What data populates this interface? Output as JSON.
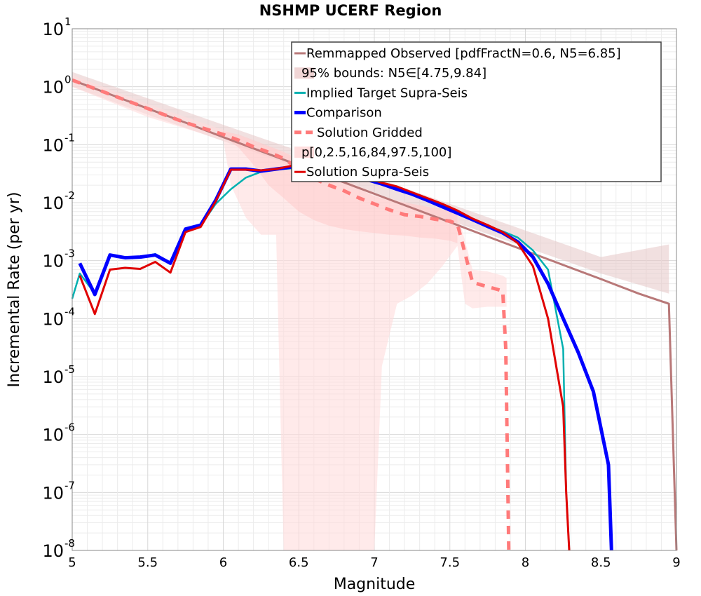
{
  "chart_data": {
    "type": "line",
    "title": "NSHMP UCERF Region",
    "xlabel": "Magnitude",
    "ylabel": "Incremental Rate (per yr)",
    "xlim": [
      5,
      9
    ],
    "ylim": [
      1e-08,
      10
    ],
    "yscale": "log",
    "grid": true,
    "legend_position": "top-right",
    "x_ticks": [
      "5",
      "5.5",
      "6",
      "6.5",
      "7",
      "7.5",
      "8",
      "8.5",
      "9"
    ],
    "y_ticks": [
      {
        "base": "10",
        "exp": "1"
      },
      {
        "base": "10",
        "exp": "0"
      },
      {
        "base": "10",
        "exp": "-1"
      },
      {
        "base": "10",
        "exp": "-2"
      },
      {
        "base": "10",
        "exp": "-3"
      },
      {
        "base": "10",
        "exp": "-4"
      },
      {
        "base": "10",
        "exp": "-5"
      },
      {
        "base": "10",
        "exp": "-6"
      },
      {
        "base": "10",
        "exp": "-7"
      },
      {
        "base": "10",
        "exp": "-8"
      }
    ],
    "legend": [
      {
        "label": "Remmapped Observed [pdfFractN=0.6, N5=6.85]",
        "color": "#B87878",
        "style": "solid"
      },
      {
        "label": "95% bounds: N5∈[4.75,9.84]",
        "color": "#F0D5D5",
        "style": "band"
      },
      {
        "label": "Implied Target Supra-Seis",
        "color": "#00B0B0",
        "style": "solid"
      },
      {
        "label": "Comparison",
        "color": "#0000FF",
        "style": "thick"
      },
      {
        "label": "Solution Gridded",
        "color": "#FF7A7A",
        "style": "dashed"
      },
      {
        "label": "p[0,2.5,16,84,97.5,100]",
        "color": "#FFDDDD",
        "style": "band"
      },
      {
        "label": "Solution Supra-Seis",
        "color": "#E00000",
        "style": "solid"
      }
    ],
    "bands": [
      {
        "name": "95% bounds: N5∈[4.75,9.84]",
        "color": "#E6C6C6",
        "opacity": 0.55,
        "x": [
          5.0,
          5.5,
          6.0,
          6.5,
          7.0,
          7.5,
          8.0,
          8.5,
          8.95
        ],
        "upper": [
          1.8,
          0.63,
          0.22,
          0.078,
          0.027,
          0.0095,
          0.0033,
          0.00115,
          0.0019
        ],
        "lower": [
          1.0,
          0.33,
          0.115,
          0.04,
          0.014,
          0.0049,
          0.0017,
          0.0006,
          0.00027
        ]
      },
      {
        "name": "p[0,2.5,16,84,97.5,100] outer",
        "color": "#FFDCDC",
        "opacity": 0.6,
        "x": [
          5.0,
          5.5,
          6.0,
          6.05,
          6.15,
          6.25,
          6.35,
          6.4,
          6.45,
          6.55,
          6.65,
          6.75,
          6.85,
          6.95,
          7.0,
          7.05,
          7.15,
          7.25,
          7.35,
          7.45,
          7.55,
          7.6,
          7.65,
          7.75,
          7.85,
          7.875
        ],
        "upper": [
          1.6,
          0.5,
          0.18,
          0.16,
          0.13,
          0.1,
          0.085,
          0.075,
          0.066,
          0.05,
          0.038,
          0.03,
          0.022,
          0.017,
          0.015,
          0.013,
          0.011,
          0.0095,
          0.0085,
          0.0075,
          0.0068,
          0.0022,
          0.0007,
          0.00065,
          0.00055,
          0.0005
        ],
        "lower": [
          1.0,
          0.3,
          0.12,
          0.02,
          0.0055,
          0.0028,
          0.0028,
          1e-08,
          1e-08,
          1e-08,
          1e-08,
          1e-08,
          1e-08,
          1e-08,
          1e-08,
          1.5e-05,
          0.00018,
          0.00025,
          0.0004,
          0.0008,
          0.0018,
          0.00018,
          0.00015,
          0.00016,
          0.00016,
          0.00016
        ]
      },
      {
        "name": "p[0,2.5,16,84,97.5,100] inner",
        "color": "#FFC8C8",
        "opacity": 0.5,
        "x": [
          6.0,
          6.1,
          6.2,
          6.3,
          6.4,
          6.5,
          6.6,
          6.7,
          6.8,
          6.9,
          7.0,
          7.1,
          7.2,
          7.3,
          7.4,
          7.5,
          7.55
        ],
        "upper": [
          0.17,
          0.15,
          0.12,
          0.095,
          0.075,
          0.055,
          0.04,
          0.03,
          0.022,
          0.017,
          0.013,
          0.011,
          0.01,
          0.009,
          0.008,
          0.0072,
          0.0068
        ],
        "lower": [
          0.14,
          0.09,
          0.045,
          0.02,
          0.012,
          0.007,
          0.005,
          0.004,
          0.0035,
          0.0032,
          0.003,
          0.0028,
          0.0027,
          0.0025,
          0.0024,
          0.0022,
          0.002
        ]
      }
    ],
    "series": [
      {
        "name": "Remmapped Observed [pdfFractN=0.6, N5=6.85]",
        "color": "#B87878",
        "width": 3,
        "dash": "",
        "x": [
          5.0,
          5.25,
          5.5,
          5.75,
          6.0,
          6.25,
          6.5,
          6.75,
          7.0,
          7.25,
          7.5,
          7.75,
          8.0,
          8.25,
          8.5,
          8.75,
          8.95,
          9.0
        ],
        "y": [
          1.3,
          0.74,
          0.42,
          0.24,
          0.135,
          0.077,
          0.044,
          0.025,
          0.0142,
          0.0081,
          0.0046,
          0.0026,
          0.00148,
          0.00084,
          0.00048,
          0.00027,
          0.00018,
          1e-08
        ]
      },
      {
        "name": "Implied Target Supra-Seis",
        "color": "#00B0B0",
        "width": 2.5,
        "dash": "",
        "x": [
          5.0,
          5.05,
          5.15,
          5.25,
          5.35,
          5.45,
          5.55,
          5.65,
          5.75,
          5.85,
          5.95,
          6.05,
          6.15,
          6.25,
          6.35,
          6.45,
          6.55,
          6.65,
          6.75,
          6.85,
          6.95,
          7.05,
          7.15,
          7.25,
          7.35,
          7.45,
          7.55,
          7.65,
          7.75,
          7.85,
          7.95,
          8.05,
          8.15,
          8.25,
          8.27,
          8.29
        ],
        "y": [
          0.00022,
          0.0006,
          0.00027,
          0.00122,
          0.00112,
          0.00115,
          0.0013,
          0.0009,
          0.0032,
          0.004,
          0.0095,
          0.017,
          0.027,
          0.034,
          0.037,
          0.039,
          0.039,
          0.037,
          0.033,
          0.029,
          0.025,
          0.021,
          0.017,
          0.014,
          0.011,
          0.0085,
          0.0066,
          0.0052,
          0.004,
          0.0032,
          0.0025,
          0.0015,
          0.0007,
          3e-05,
          1e-07,
          1e-08
        ]
      },
      {
        "name": "Comparison",
        "color": "#0000FF",
        "width": 5,
        "dash": "",
        "x": [
          5.05,
          5.15,
          5.25,
          5.35,
          5.45,
          5.55,
          5.65,
          5.75,
          5.85,
          5.95,
          6.05,
          6.15,
          6.25,
          6.35,
          6.45,
          6.55,
          6.65,
          6.75,
          6.85,
          6.95,
          7.05,
          7.15,
          7.25,
          7.35,
          7.45,
          7.55,
          7.65,
          7.75,
          7.85,
          7.95,
          8.05,
          8.15,
          8.25,
          8.35,
          8.45,
          8.55,
          8.57
        ],
        "y": [
          0.0009,
          0.00026,
          0.00125,
          0.00112,
          0.00115,
          0.00125,
          0.0009,
          0.0035,
          0.0041,
          0.011,
          0.038,
          0.038,
          0.035,
          0.038,
          0.041,
          0.041,
          0.037,
          0.033,
          0.029,
          0.025,
          0.021,
          0.017,
          0.014,
          0.011,
          0.0085,
          0.0066,
          0.0051,
          0.0039,
          0.003,
          0.0021,
          0.00115,
          0.0004,
          0.0001,
          2.6e-05,
          5.5e-06,
          3e-07,
          1e-08
        ]
      },
      {
        "name": "Solution Gridded",
        "color": "#FF7A7A",
        "width": 5,
        "dash": "12,10",
        "x": [
          5.0,
          5.25,
          5.5,
          5.75,
          6.0,
          6.1,
          6.2,
          6.3,
          6.4,
          6.5,
          6.6,
          6.7,
          6.8,
          6.9,
          7.0,
          7.1,
          7.2,
          7.3,
          7.4,
          7.5,
          7.55,
          7.65,
          7.85,
          7.87,
          7.89
        ],
        "y": [
          1.3,
          0.74,
          0.42,
          0.24,
          0.15,
          0.12,
          0.092,
          0.074,
          0.058,
          0.038,
          0.026,
          0.02,
          0.016,
          0.012,
          0.0095,
          0.0075,
          0.0062,
          0.0058,
          0.0052,
          0.0048,
          0.0043,
          0.00042,
          0.0003,
          3e-05,
          1e-08
        ]
      },
      {
        "name": "Solution Supra-Seis",
        "color": "#E00000",
        "width": 3,
        "dash": "",
        "x": [
          5.05,
          5.15,
          5.25,
          5.35,
          5.45,
          5.55,
          5.65,
          5.75,
          5.85,
          5.95,
          6.05,
          6.15,
          6.25,
          6.35,
          6.45,
          6.55,
          6.65,
          6.75,
          6.85,
          6.95,
          7.05,
          7.15,
          7.25,
          7.35,
          7.45,
          7.55,
          7.65,
          7.75,
          7.85,
          7.95,
          8.05,
          8.15,
          8.25,
          8.27,
          8.29
        ],
        "y": [
          0.00055,
          0.00012,
          0.0007,
          0.00075,
          0.00072,
          0.00095,
          0.00062,
          0.0031,
          0.0038,
          0.0105,
          0.037,
          0.037,
          0.036,
          0.038,
          0.043,
          0.045,
          0.04,
          0.035,
          0.031,
          0.027,
          0.022,
          0.019,
          0.015,
          0.012,
          0.0095,
          0.0073,
          0.0053,
          0.0041,
          0.0031,
          0.002,
          0.0008,
          0.0001,
          3e-06,
          1e-07,
          1e-08
        ]
      }
    ]
  }
}
